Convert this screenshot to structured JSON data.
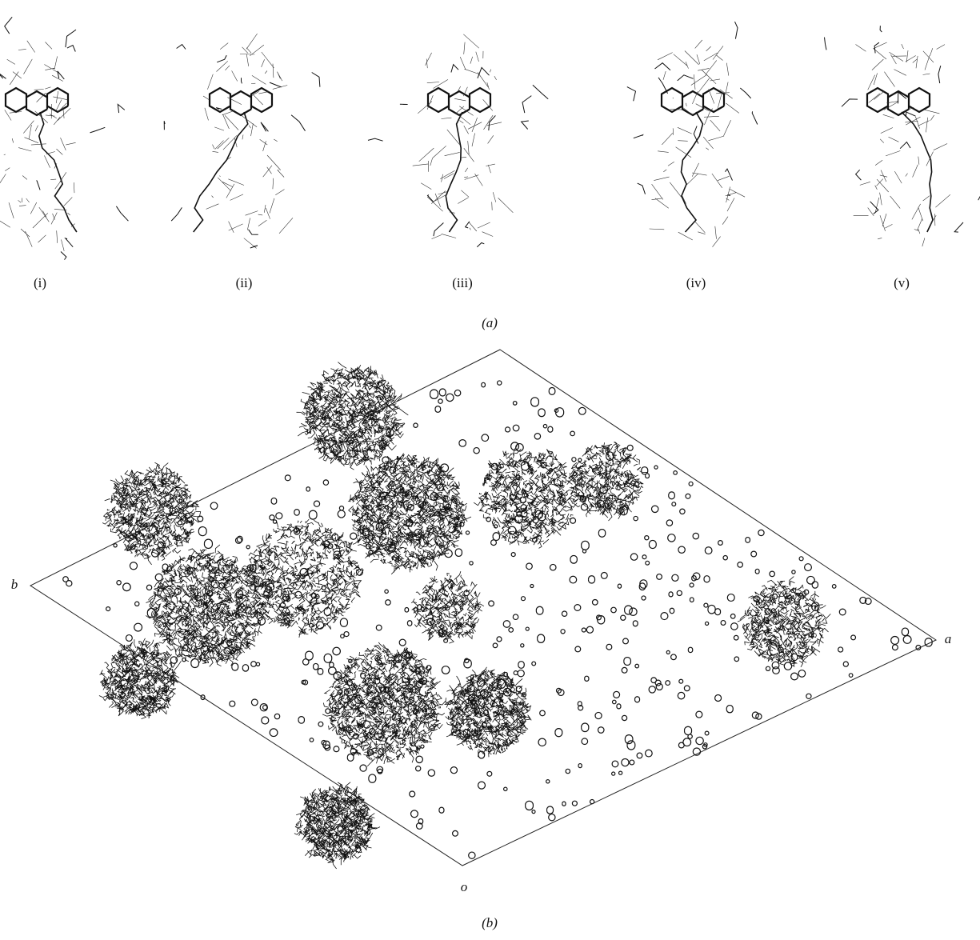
{
  "panel_a": {
    "label": "(a)",
    "subpanels": [
      "(i)",
      "(ii)",
      "(iii)",
      "(iv)",
      "(v)"
    ]
  },
  "panel_b": {
    "label": "(b)",
    "axis_labels": {
      "b": "b",
      "a": "a",
      "o": "o"
    }
  }
}
